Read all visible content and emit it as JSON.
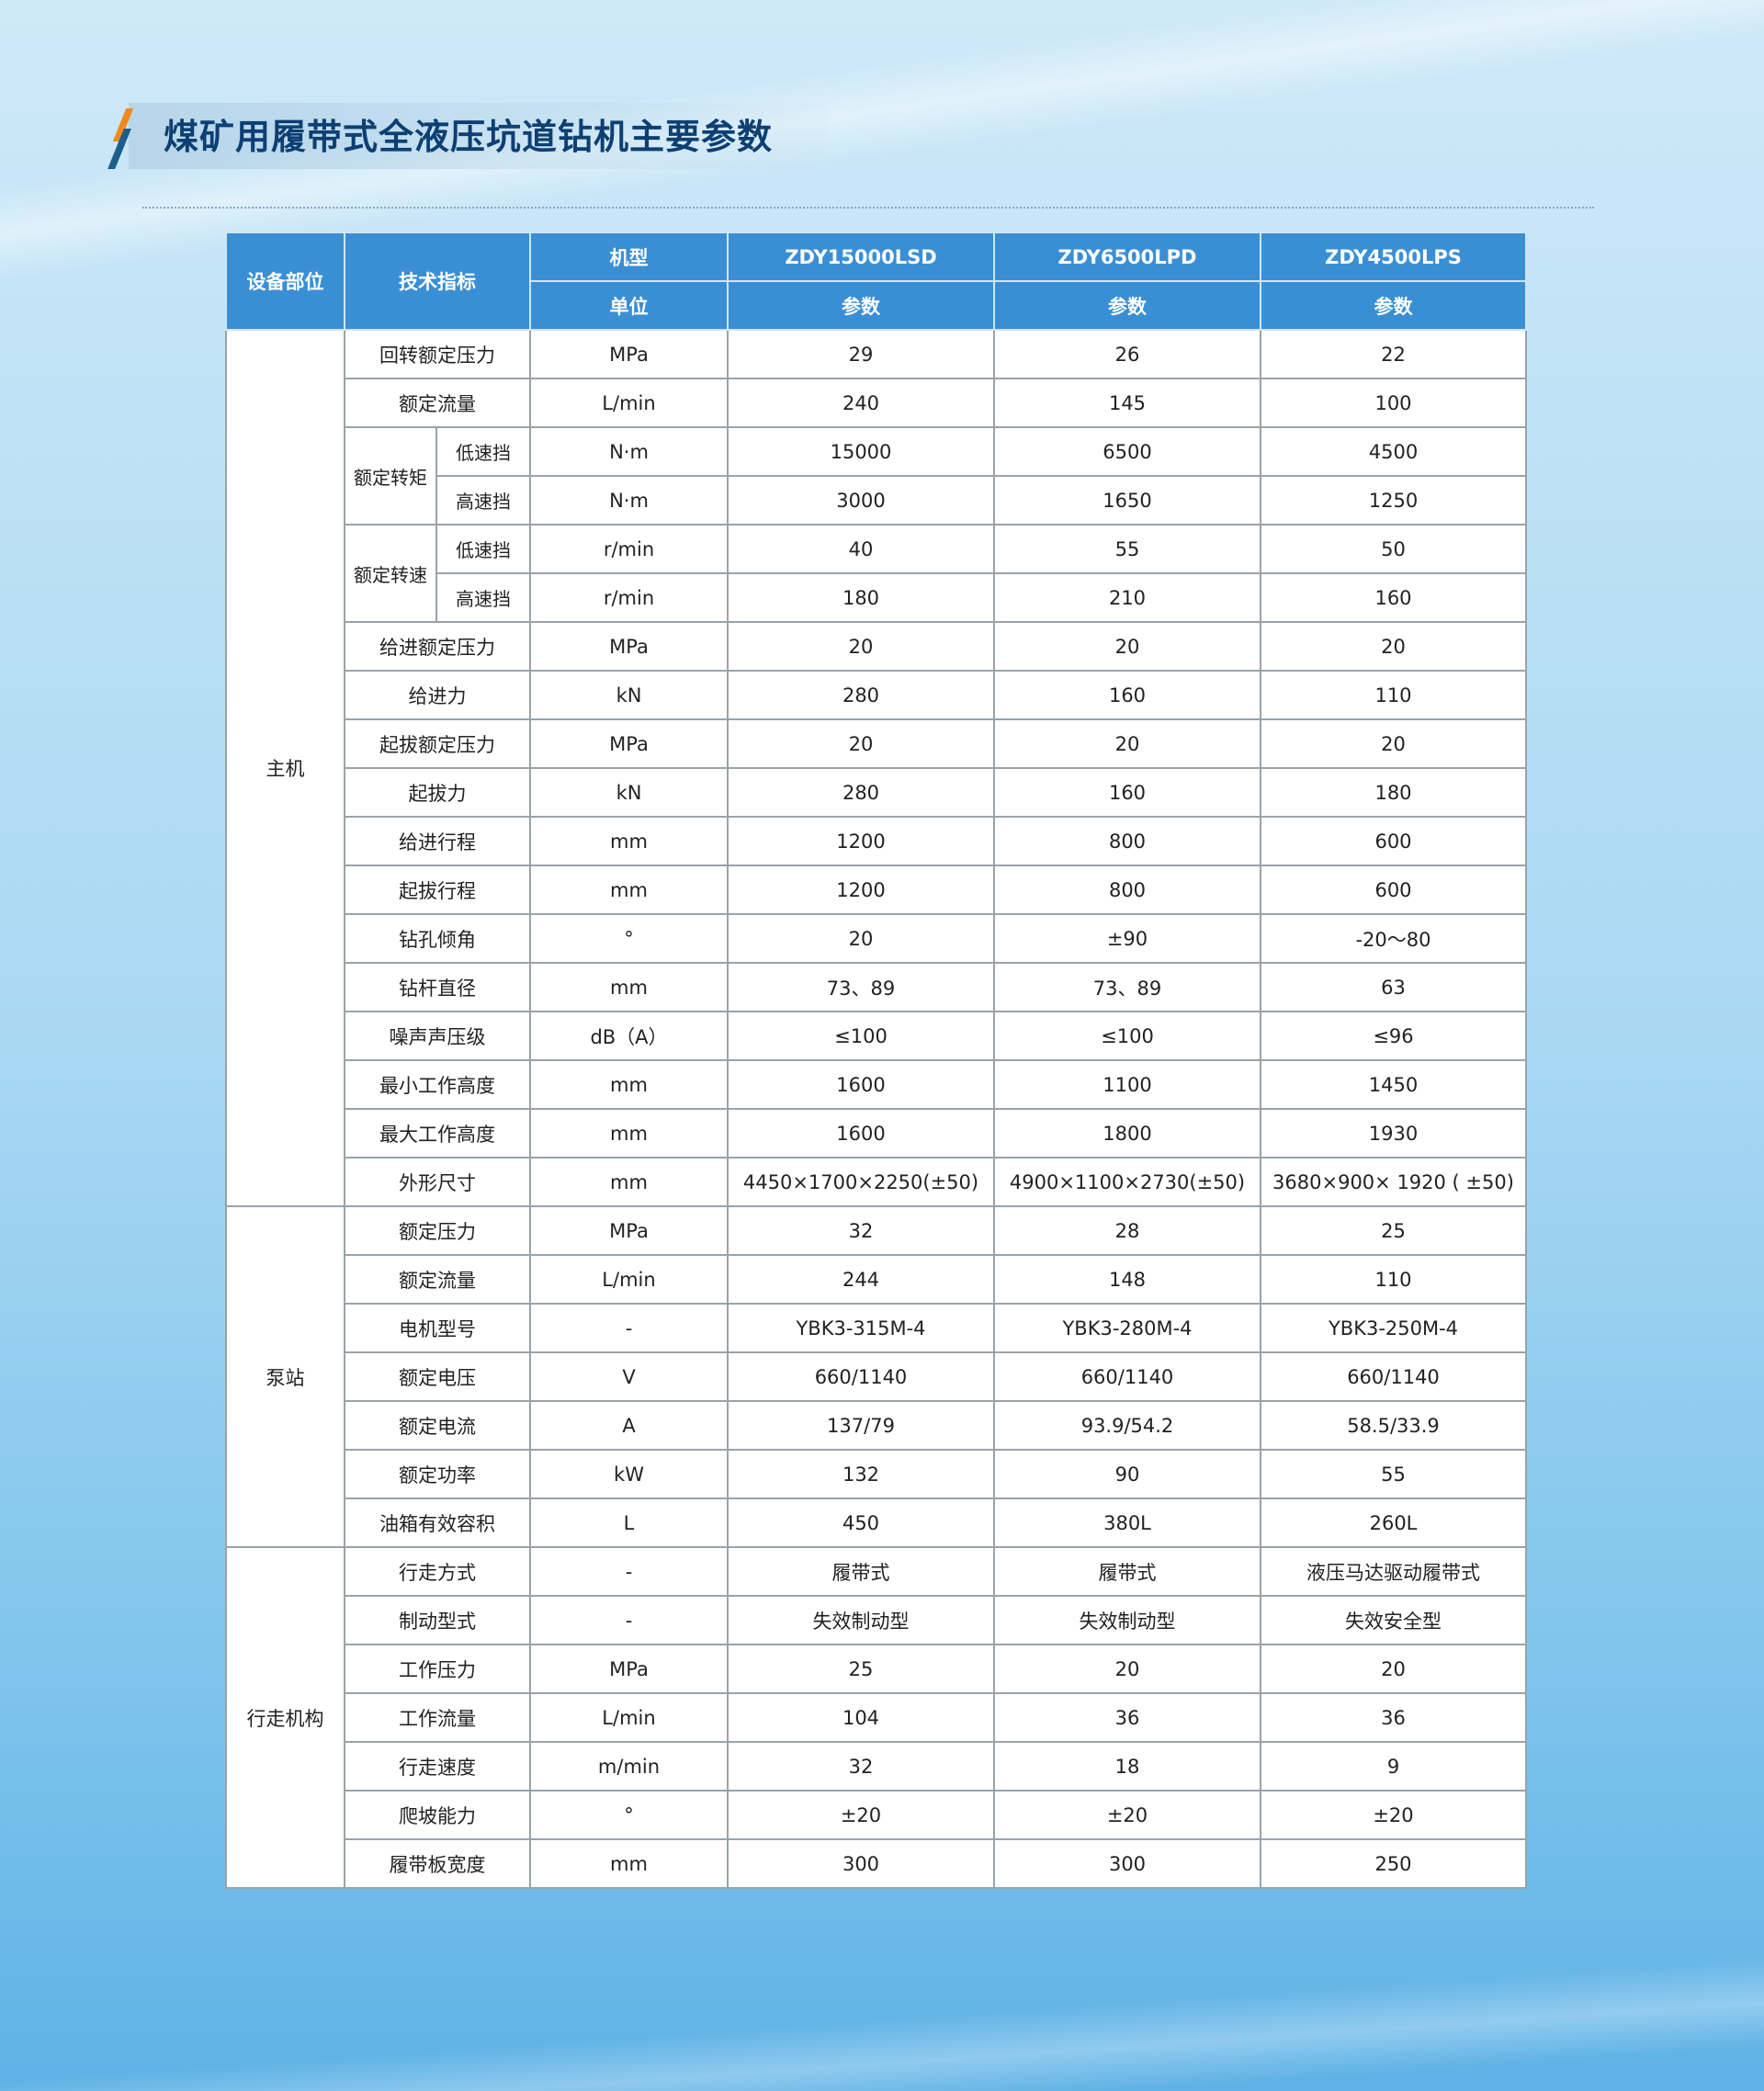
{
  "title": "煤矿用履带式全液压坑道钻机主要参数",
  "header": {
    "part": "设备部位",
    "indicator": "技术指标",
    "model_label": "机型",
    "unit_label": "单位",
    "models": [
      "ZDY15000LSD",
      "ZDY6500LPD",
      "ZDY4500LPS"
    ],
    "param_label": "参数"
  },
  "sections": [
    {
      "name": "主机",
      "rows": [
        {
          "indicator": "回转额定压力",
          "unit": "MPa",
          "values": [
            "29",
            "26",
            "22"
          ]
        },
        {
          "indicator": "额定流量",
          "unit": "L/min",
          "values": [
            "240",
            "145",
            "100"
          ]
        },
        {
          "group": "额定转矩",
          "indicator": "低速挡",
          "unit": "N·m",
          "values": [
            "15000",
            "6500",
            "4500"
          ]
        },
        {
          "group": "额定转矩",
          "indicator": "高速挡",
          "unit": "N·m",
          "values": [
            "3000",
            "1650",
            "1250"
          ]
        },
        {
          "group": "额定转速",
          "indicator": "低速挡",
          "unit": "r/min",
          "values": [
            "40",
            "55",
            "50"
          ]
        },
        {
          "group": "额定转速",
          "indicator": "高速挡",
          "unit": "r/min",
          "values": [
            "180",
            "210",
            "160"
          ]
        },
        {
          "indicator": "给进额定压力",
          "unit": "MPa",
          "values": [
            "20",
            "20",
            "20"
          ]
        },
        {
          "indicator": "给进力",
          "unit": "kN",
          "values": [
            "280",
            "160",
            "110"
          ]
        },
        {
          "indicator": "起拔额定压力",
          "unit": "MPa",
          "values": [
            "20",
            "20",
            "20"
          ]
        },
        {
          "indicator": "起拔力",
          "unit": "kN",
          "values": [
            "280",
            "160",
            "180"
          ]
        },
        {
          "indicator": "给进行程",
          "unit": "mm",
          "values": [
            "1200",
            "800",
            "600"
          ]
        },
        {
          "indicator": "起拔行程",
          "unit": "mm",
          "values": [
            "1200",
            "800",
            "600"
          ]
        },
        {
          "indicator": "钻孔倾角",
          "unit": "°",
          "values": [
            "20",
            "±90",
            "-20～80"
          ]
        },
        {
          "indicator": "钻杆直径",
          "unit": "mm",
          "values": [
            "73、89",
            "73、89",
            "63"
          ]
        },
        {
          "indicator": "噪声声压级",
          "unit": "dB（A）",
          "values": [
            "≤100",
            "≤100",
            "≤96"
          ]
        },
        {
          "indicator": "最小工作高度",
          "unit": "mm",
          "values": [
            "1600",
            "1100",
            "1450"
          ]
        },
        {
          "indicator": "最大工作高度",
          "unit": "mm",
          "values": [
            "1600",
            "1800",
            "1930"
          ]
        },
        {
          "indicator": "外形尺寸",
          "unit": "mm",
          "values": [
            "4450×1700×2250(±50)",
            "4900×1100×2730(±50)",
            "3680×900× 1920 ( ±50)"
          ]
        }
      ]
    },
    {
      "name": "泵站",
      "rows": [
        {
          "indicator": "额定压力",
          "unit": "MPa",
          "values": [
            "32",
            "28",
            "25"
          ]
        },
        {
          "indicator": "额定流量",
          "unit": "L/min",
          "values": [
            "244",
            "148",
            "110"
          ]
        },
        {
          "indicator": "电机型号",
          "unit": "-",
          "values": [
            "YBK3-315M-4",
            "YBK3-280M-4",
            "YBK3-250M-4"
          ]
        },
        {
          "indicator": "额定电压",
          "unit": "V",
          "values": [
            "660/1140",
            "660/1140",
            "660/1140"
          ]
        },
        {
          "indicator": "额定电流",
          "unit": "A",
          "values": [
            "137/79",
            "93.9/54.2",
            "58.5/33.9"
          ]
        },
        {
          "indicator": "额定功率",
          "unit": "kW",
          "values": [
            "132",
            "90",
            "55"
          ]
        },
        {
          "indicator": "油箱有效容积",
          "unit": "L",
          "values": [
            "450",
            "380L",
            "260L"
          ]
        }
      ]
    },
    {
      "name": "行走机构",
      "rows": [
        {
          "indicator": "行走方式",
          "unit": "-",
          "values": [
            "履带式",
            "履带式",
            "液压马达驱动履带式"
          ]
        },
        {
          "indicator": "制动型式",
          "unit": "-",
          "values": [
            "失效制动型",
            "失效制动型",
            "失效安全型"
          ]
        },
        {
          "indicator": "工作压力",
          "unit": "MPa",
          "values": [
            "25",
            "20",
            "20"
          ]
        },
        {
          "indicator": "工作流量",
          "unit": "L/min",
          "values": [
            "104",
            "36",
            "36"
          ]
        },
        {
          "indicator": "行走速度",
          "unit": "m/min",
          "values": [
            "32",
            "18",
            "9"
          ]
        },
        {
          "indicator": "爬坡能力",
          "unit": "°",
          "values": [
            "±20",
            "±20",
            "±20"
          ]
        },
        {
          "indicator": "履带板宽度",
          "unit": "mm",
          "values": [
            "300",
            "300",
            "250"
          ]
        }
      ]
    }
  ]
}
